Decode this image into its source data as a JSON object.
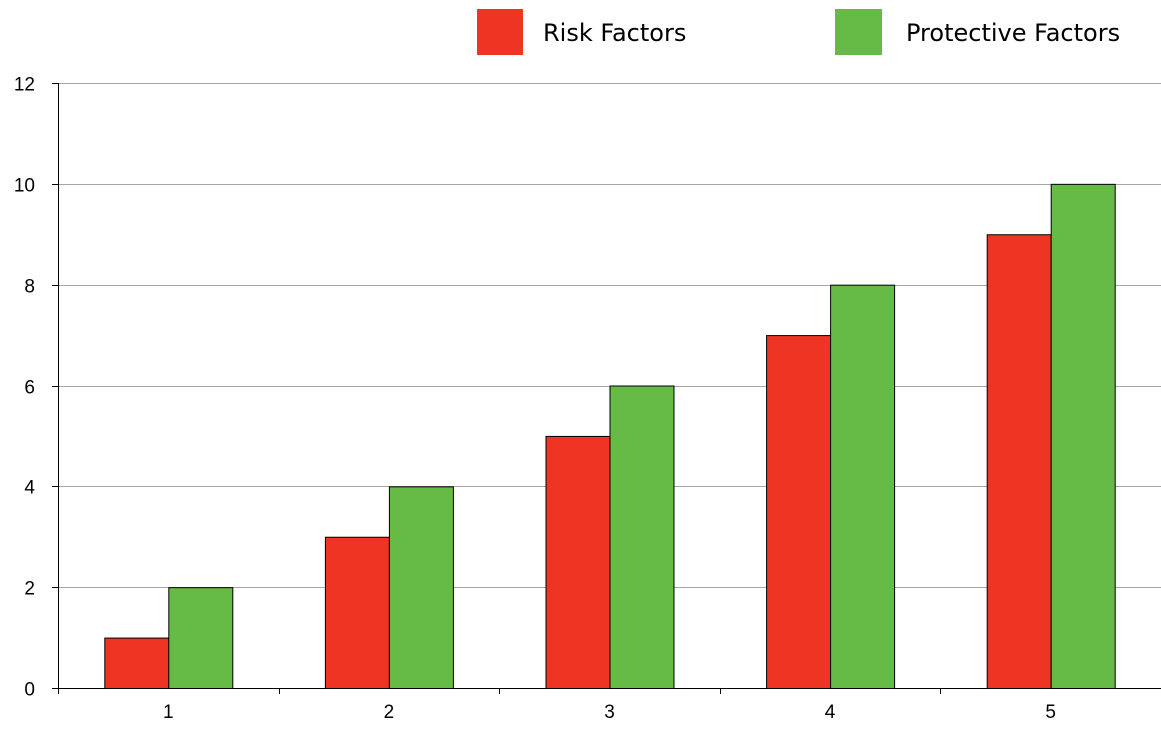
{
  "chart_data": {
    "type": "bar",
    "title": "",
    "xlabel": "",
    "ylabel": "",
    "categories": [
      "1",
      "2",
      "3",
      "4",
      "5"
    ],
    "series": [
      {
        "name": "Risk Factors",
        "color": "#ee3524",
        "values": [
          1,
          3,
          5,
          7,
          9
        ]
      },
      {
        "name": "Protective Factors",
        "color": "#66bb46",
        "values": [
          2,
          4,
          6,
          8,
          10
        ]
      }
    ],
    "ylim": [
      0,
      12
    ],
    "yticks": [
      "0",
      "2",
      "4",
      "6",
      "8",
      "10",
      "12"
    ],
    "grid": true,
    "legend_position": "top-right"
  }
}
